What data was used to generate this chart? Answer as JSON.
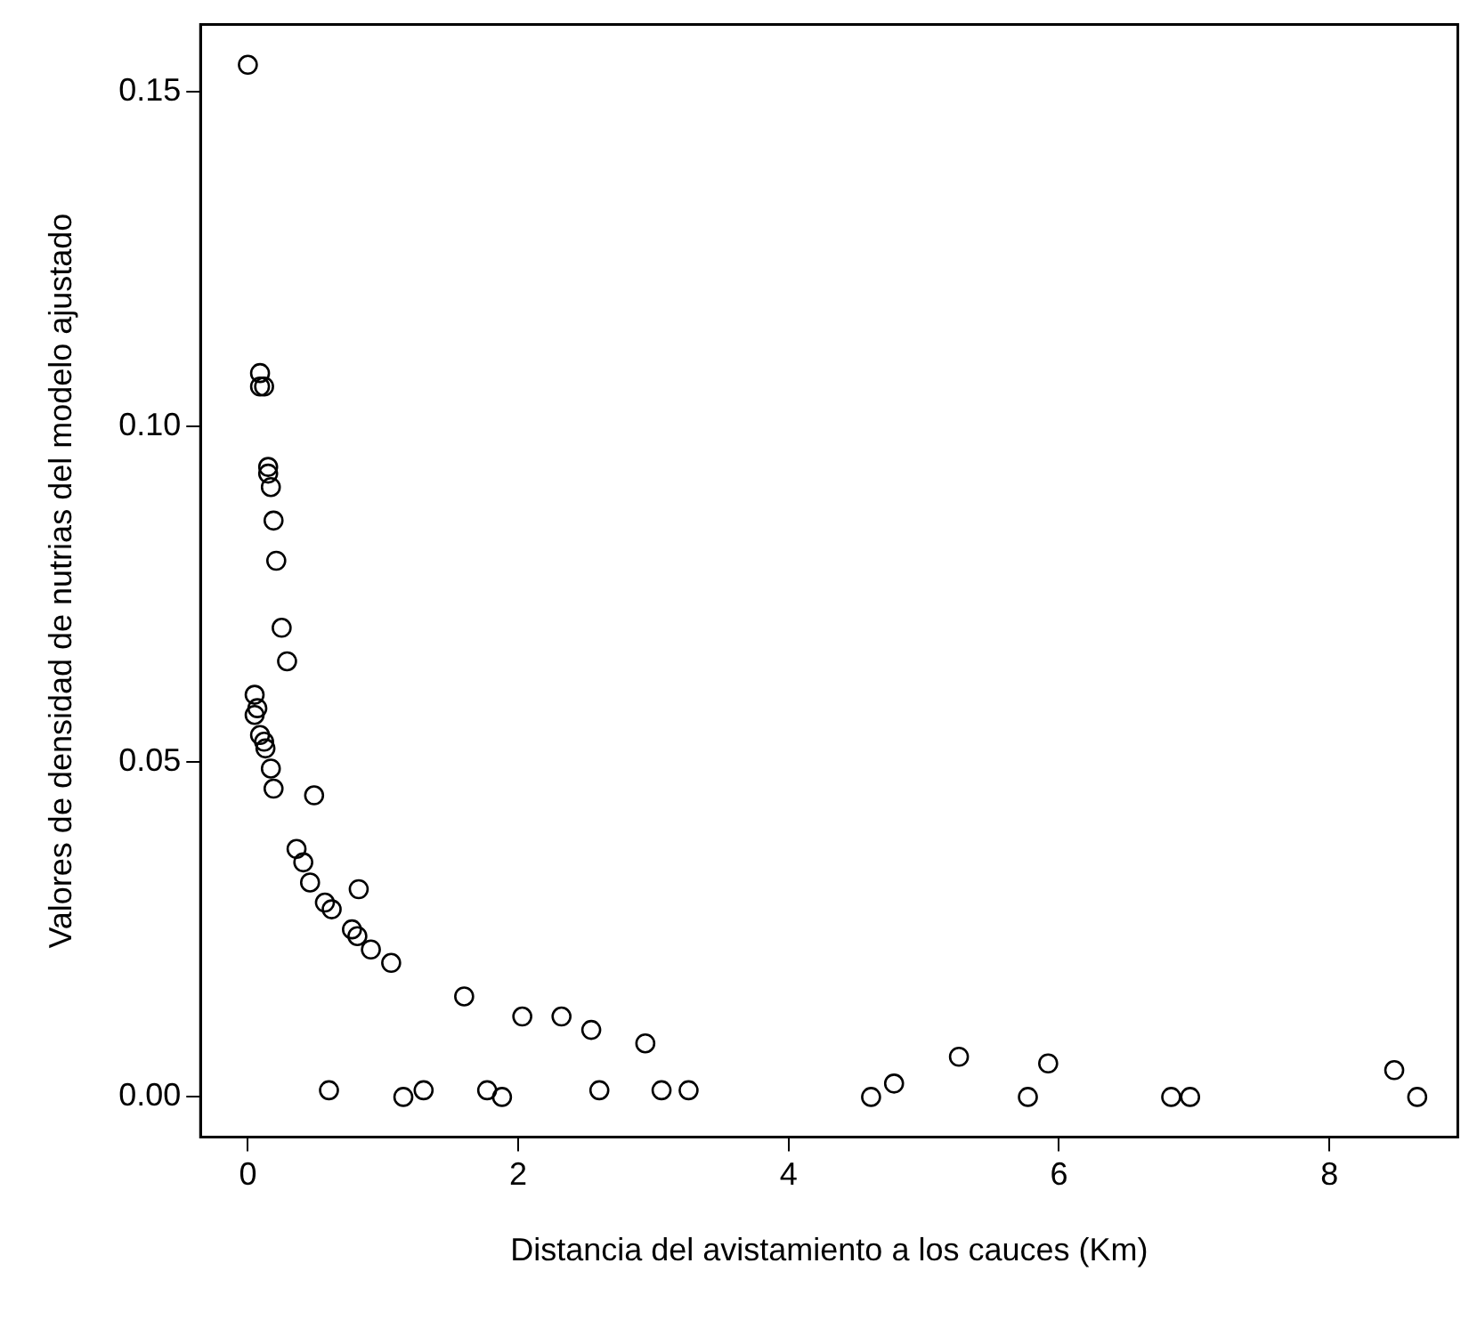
{
  "chart_data": {
    "type": "scatter",
    "xlabel": "Distancia del avistamiento a los cauces (Km)",
    "ylabel": "Valores de densidad de nutrias del modelo ajustado",
    "x": [
      0.0,
      0.09,
      0.12,
      0.09,
      0.15,
      0.15,
      0.17,
      0.19,
      0.21,
      0.25,
      0.29,
      0.05,
      0.05,
      0.07,
      0.09,
      0.13,
      0.12,
      0.17,
      0.19,
      0.49,
      0.36,
      0.41,
      0.46,
      0.57,
      0.62,
      0.82,
      0.77,
      0.81,
      0.91,
      1.06,
      1.6,
      2.03,
      2.32,
      2.54,
      2.94,
      0.6,
      1.15,
      1.3,
      1.77,
      1.88,
      2.6,
      3.06,
      3.26,
      4.61,
      4.78,
      5.26,
      5.77,
      5.92,
      6.83,
      6.97,
      8.48,
      8.65
    ],
    "values": [
      0.154,
      0.108,
      0.106,
      0.106,
      0.094,
      0.093,
      0.091,
      0.086,
      0.08,
      0.07,
      0.065,
      0.06,
      0.057,
      0.058,
      0.054,
      0.052,
      0.053,
      0.049,
      0.046,
      0.045,
      0.037,
      0.035,
      0.032,
      0.029,
      0.028,
      0.031,
      0.025,
      0.024,
      0.022,
      0.02,
      0.015,
      0.012,
      0.012,
      0.01,
      0.008,
      0.001,
      0.0,
      0.001,
      0.001,
      0.0,
      0.001,
      0.001,
      0.001,
      0.0,
      0.002,
      0.006,
      0.0,
      0.005,
      0.0,
      0.0,
      0.004,
      0.0
    ],
    "color": "#000000",
    "marker": "circle",
    "xlim": [
      -0.35,
      8.95
    ],
    "ylim": [
      -0.006,
      0.16
    ],
    "xticks": [
      0,
      2,
      4,
      6,
      8
    ],
    "yticks": [
      {
        "value": 0,
        "label": "0.00"
      },
      {
        "value": 0.05,
        "label": "0.05"
      },
      {
        "value": 0.1,
        "label": "0.10"
      },
      {
        "value": 0.15,
        "label": "0.15"
      }
    ],
    "grid": false,
    "legend": false
  }
}
